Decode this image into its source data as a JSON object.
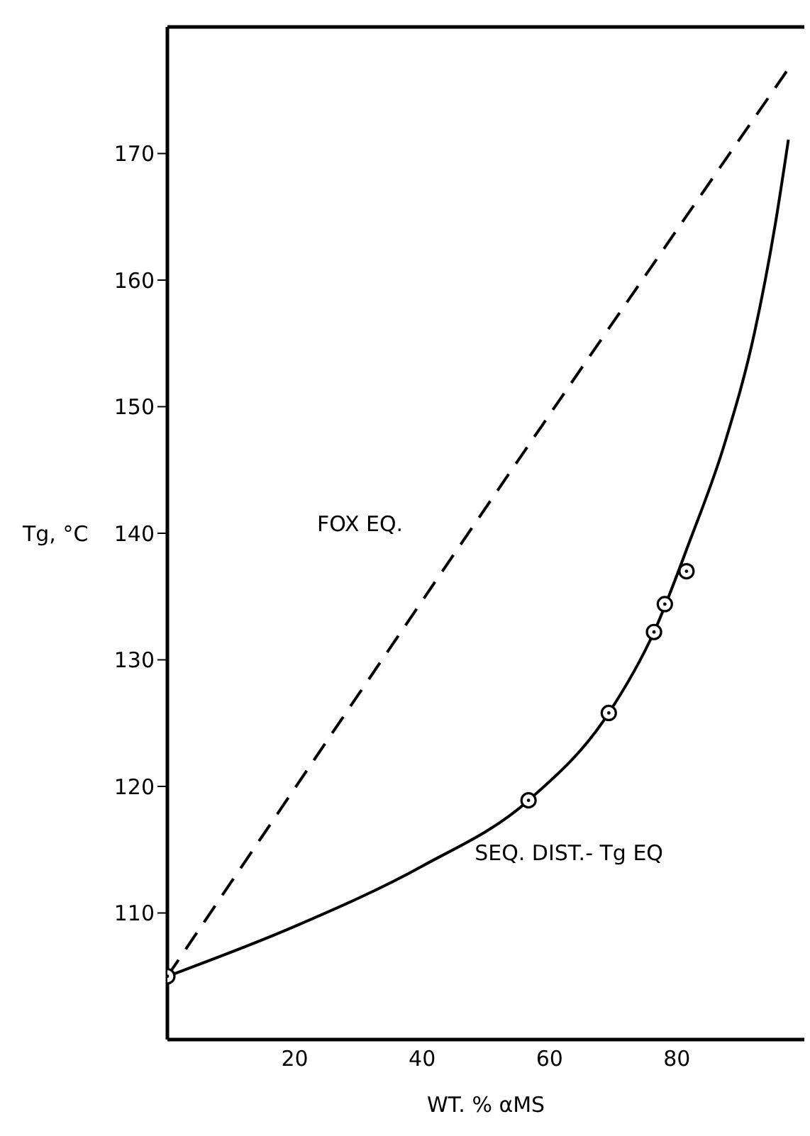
{
  "chart_data": {
    "type": "line",
    "xlabel": "WT. % αMS",
    "ylabel": "Tg, °C",
    "xlim": [
      0,
      100
    ],
    "xticks": [
      20,
      40,
      60,
      80
    ],
    "ylim": [
      100,
      180
    ],
    "yticks": [
      110,
      120,
      130,
      140,
      150,
      160,
      170
    ],
    "grid": false,
    "legend": false,
    "series": [
      {
        "name": "FOX EQ.",
        "line_style": "dashed",
        "marker": "none",
        "color": "#000000",
        "x": [
          0,
          56.9,
          97.5
        ],
        "values": [
          105,
          147.1,
          176.7
        ]
      },
      {
        "name": "SEQ. DIST.- Tg EQ",
        "line_style": "solid",
        "marker": "none",
        "color": "#000000",
        "x": [
          0,
          19.8,
          40,
          56.7,
          69.3,
          76.4,
          81.8,
          87.5,
          92.2,
          95.4,
          97.5
        ],
        "values": [
          105,
          108.9,
          113.7,
          118.9,
          125.8,
          132.2,
          139.1,
          147.1,
          155.9,
          164.3,
          171.1
        ]
      },
      {
        "type": "scatter",
        "marker": "circle",
        "color": "#000000",
        "x": [
          0,
          56.7,
          69.3,
          76.4,
          78.1,
          81.5
        ],
        "values": [
          105,
          118.9,
          125.8,
          132.2,
          134.4,
          137.0
        ]
      }
    ]
  }
}
